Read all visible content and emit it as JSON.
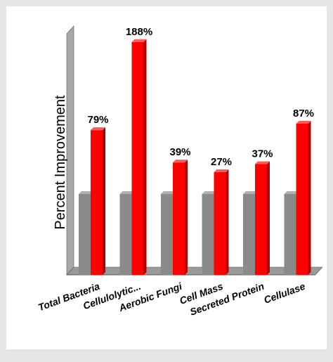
{
  "chart_data": {
    "type": "bar",
    "title": "",
    "ylabel": "Percent Improvement",
    "xlabel": "",
    "categories": [
      "Total Bacteria",
      "Cellulolytic...",
      "Aerobic Fungi",
      "Cell Mass",
      "Secreted Protein",
      "Cellulase"
    ],
    "series": [
      {
        "values": [
          100,
          100,
          100,
          100,
          100,
          100
        ]
      },
      {
        "values": [
          179,
          288,
          139,
          127,
          137,
          187
        ]
      }
    ],
    "data_labels": [
      "79%",
      "188%",
      "39%",
      "27%",
      "37%",
      "87%"
    ],
    "ylim": [
      0,
      300
    ],
    "grid": false,
    "legend": "none",
    "colors": {
      "baseline_bar": "#8a8a8a",
      "improved_bar": "#ff0000",
      "wall": "#a8a8a8",
      "floor": "#9a9a9a"
    }
  }
}
